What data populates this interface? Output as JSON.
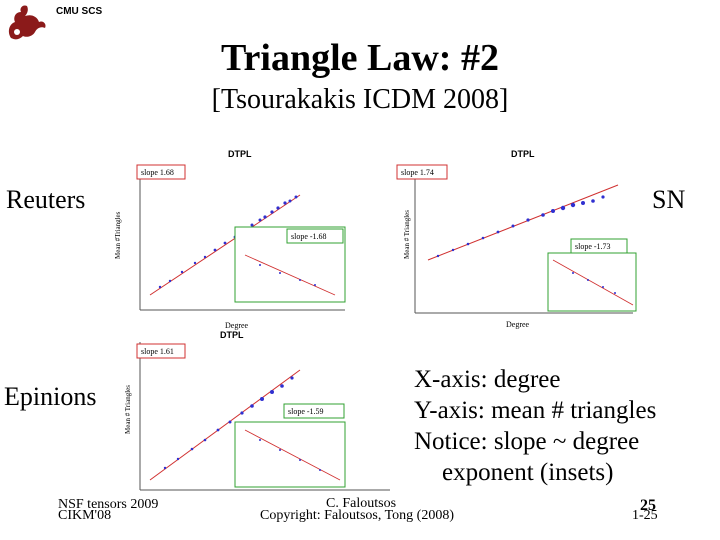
{
  "header": {
    "org": "CMU SCS",
    "logo": "griffin-logo"
  },
  "slide": {
    "title": "Triangle Law: #2",
    "subtitle": "[Tsourakakis ICDM 2008]"
  },
  "labels": {
    "reuters": "Reuters",
    "sn": "SN",
    "epinions": "Epinions"
  },
  "plots": {
    "reuters": {
      "title": "DTPL",
      "slope_main": "slope 1.68",
      "slope_inset": "slope -1.68",
      "xlabel": "Degree",
      "ylabel": "Mean #Triangles"
    },
    "sn": {
      "title": "DTPL",
      "slope_main": "slope 1.74",
      "slope_inset": "slope -1.73",
      "xlabel": "Degree",
      "ylabel": "Mean # Triangles"
    },
    "epinions": {
      "title": "DTPL",
      "slope_main": "slope 1.61",
      "slope_inset": "slope -1.59",
      "xlabel": "",
      "ylabel": "Mean # Triangles"
    }
  },
  "notes": [
    "X-axis: degree",
    "Y-axis: mean # triangles",
    "Notice: slope ~ degree",
    "exponent (insets)"
  ],
  "footer": {
    "left_top": "NSF tensors 2009",
    "left_bottom": "CIKM'08",
    "center_top": "C. Faloutsos",
    "center_bottom": "Copyright: Faloutsos, Tong (2008)",
    "right_top": "25",
    "right_bottom": "1-25"
  },
  "colors": {
    "series": "#3030d0",
    "fit": "#d03030",
    "slope_box_main": "#d03030",
    "slope_box_inset": "#30a030"
  }
}
